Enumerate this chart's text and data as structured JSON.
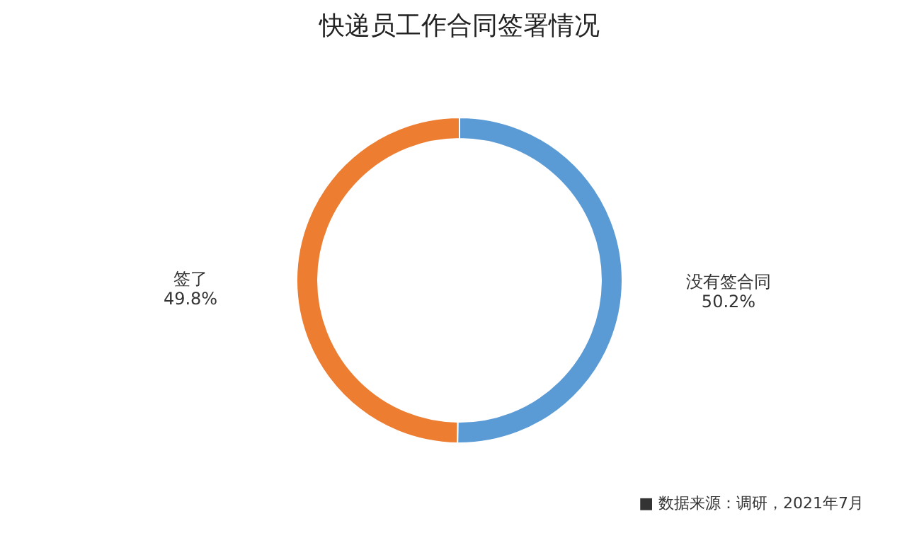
{
  "chart_data": {
    "type": "donut",
    "title": "快递员工作合同签署情况",
    "categories": [
      "没有签合同",
      "签了"
    ],
    "values": [
      50.2,
      49.8
    ],
    "colors": [
      "#5b9bd5",
      "#ed7d31"
    ],
    "value_labels": [
      "50.2%",
      "49.8%"
    ],
    "annotations": [
      "■ 数据来源：调研，2021年7月"
    ]
  }
}
